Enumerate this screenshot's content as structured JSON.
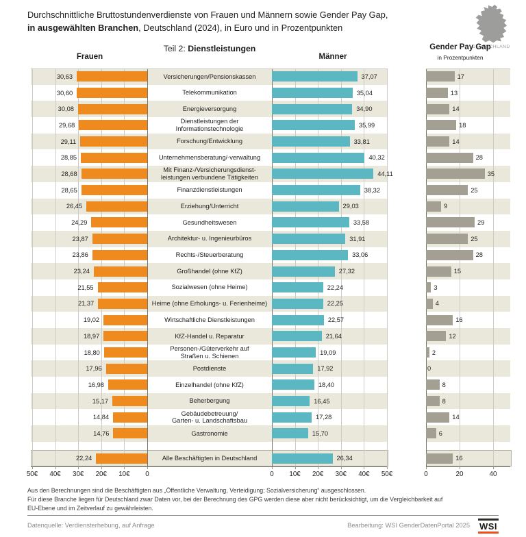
{
  "title": {
    "line1": "Durchschnittliche Bruttostundenverdienste von Frauen und Männern sowie Gender Pay Gap,",
    "line2_bold": "in ausgewählten Branchen",
    "line2_rest": ", Deutschland (2024), in Euro und in Prozentpunkten"
  },
  "map_label": "DEUTSCHLAND",
  "subtitle": {
    "prefix": "Teil 2: ",
    "bold": "Dienstleistungen"
  },
  "columns": {
    "women": "Frauen",
    "men": "Männer",
    "gpg": "Gender Pay Gap",
    "gpg_sub": "in Prozentpunkten"
  },
  "axes": {
    "women_ticks": [
      "50€",
      "40€",
      "30€",
      "20€",
      "10€",
      "0"
    ],
    "men_ticks": [
      "0",
      "10€",
      "20€",
      "30€",
      "40€",
      "50€"
    ],
    "gpg_ticks": [
      "0",
      "20",
      "40"
    ]
  },
  "rows": [
    {
      "label": "Versicherungen/Pensionskassen",
      "women": "30,63",
      "men": "37,07",
      "gpg": "17"
    },
    {
      "label": "Telekommunikation",
      "women": "30,60",
      "men": "35,04",
      "gpg": "13"
    },
    {
      "label": "Energieversorgung",
      "women": "30,08",
      "men": "34,90",
      "gpg": "14"
    },
    {
      "label": "Dienstleistungen der\nInformationstechnologie",
      "women": "29,68",
      "men": "35,99",
      "gpg": "18"
    },
    {
      "label": "Forschung/Entwicklung",
      "women": "29,11",
      "men": "33,81",
      "gpg": "14"
    },
    {
      "label": "Unternehmensberatung/-verwaltung",
      "women": "28,85",
      "men": "40,32",
      "gpg": "28"
    },
    {
      "label": "Mit Finanz-/Versicherungsdienst-\nleistungen verbundene Tätigkeiten",
      "women": "28,68",
      "men": "44,11",
      "gpg": "35"
    },
    {
      "label": "Finanzdienstleistungen",
      "women": "28,65",
      "men": "38,32",
      "gpg": "25"
    },
    {
      "label": "Erziehung/Unterricht",
      "women": "26,45",
      "men": "29,03",
      "gpg": "9"
    },
    {
      "label": "Gesundheitswesen",
      "women": "24,29",
      "men": "33,58",
      "gpg": "29"
    },
    {
      "label": "Architektur- u. Ingenieurbüros",
      "women": "23,87",
      "men": "31,91",
      "gpg": "25"
    },
    {
      "label": "Rechts-/Steuerberatung",
      "women": "23,86",
      "men": "33,06",
      "gpg": "28"
    },
    {
      "label": "Großhandel (ohne KfZ)",
      "women": "23,24",
      "men": "27,32",
      "gpg": "15"
    },
    {
      "label": "Sozialwesen (ohne Heime)",
      "women": "21,55",
      "men": "22,24",
      "gpg": "3"
    },
    {
      "label": "Heime (ohne Erholungs- u. Ferienheime)",
      "women": "21,37",
      "men": "22,25",
      "gpg": "4"
    },
    {
      "label": "Wirtschaftliche Dienstleistungen",
      "women": "19,02",
      "men": "22,57",
      "gpg": "16"
    },
    {
      "label": "KfZ-Handel u. Reparatur",
      "women": "18,97",
      "men": "21,64",
      "gpg": "12"
    },
    {
      "label": "Personen-/Güterverkehr auf\nStraßen u. Schienen",
      "women": "18,80",
      "men": "19,09",
      "gpg": "2"
    },
    {
      "label": "Postdienste",
      "women": "17,96",
      "men": "17,92",
      "gpg": "0"
    },
    {
      "label": "Einzelhandel (ohne KfZ)",
      "women": "16,98",
      "men": "18,40",
      "gpg": "8"
    },
    {
      "label": "Beherbergung",
      "women": "15,17",
      "men": "16,45",
      "gpg": "8"
    },
    {
      "label": "Gebäudebetreuung/\nGarten- u. Landschaftsbau",
      "women": "14,84",
      "men": "17,28",
      "gpg": "14"
    },
    {
      "label": "Gastronomie",
      "women": "14,76",
      "men": "15,70",
      "gpg": "6"
    },
    {
      "label": "Alle Beschäftigten in Deutschland",
      "women": "22,24",
      "men": "26,34",
      "gpg": "16"
    }
  ],
  "footnotes": {
    "line1": "Aus den Berechnungen sind die Beschäftigten aus „Öffentliche Verwaltung, Verteidigung; Sozialversicherung“ ausgeschlossen.",
    "line2": "Für diese Branche liegen für Deutschland zwar Daten vor, bei der Berechnung des GPG werden diese aber nicht berücksichtigt, um die Vergleichbarkeit auf",
    "line3": "EU-Ebene und im Zeitverlauf zu gewährleisten."
  },
  "footer": {
    "source": "Datenquelle: Verdiensterhebung, auf Anfrage",
    "credit": "Bearbeitung: WSI GenderDatenPortal 2025",
    "logo": "WSI"
  },
  "colors": {
    "women_bar": "#ef8a1e",
    "men_bar": "#5bb7c2",
    "gpg_bar": "#a3a093",
    "row_stripe": "#eae7db",
    "map_gray": "#9d9d9c",
    "logo_underline": "#e84d19"
  },
  "chart_data": {
    "type": "bar",
    "orientation": "horizontal",
    "title": "Durchschnittliche Bruttostundenverdienste von Frauen und Männern sowie Gender Pay Gap, in ausgewählten Branchen, Deutschland (2024), in Euro und in Prozentpunkten",
    "subtitle": "Teil 2: Dienstleistungen",
    "categories": [
      "Versicherungen/Pensionskassen",
      "Telekommunikation",
      "Energieversorgung",
      "Dienstleistungen der Informationstechnologie",
      "Forschung/Entwicklung",
      "Unternehmensberatung/-verwaltung",
      "Mit Finanz-/Versicherungsdienstleistungen verbundene Tätigkeiten",
      "Finanzdienstleistungen",
      "Erziehung/Unterricht",
      "Gesundheitswesen",
      "Architektur- u. Ingenieurbüros",
      "Rechts-/Steuerberatung",
      "Großhandel (ohne KfZ)",
      "Sozialwesen (ohne Heime)",
      "Heime (ohne Erholungs- u. Ferienheime)",
      "Wirtschaftliche Dienstleistungen",
      "KfZ-Handel u. Reparatur",
      "Personen-/Güterverkehr auf Straßen u. Schienen",
      "Postdienste",
      "Einzelhandel (ohne KfZ)",
      "Beherbergung",
      "Gebäudebetreuung/Garten- u. Landschaftsbau",
      "Gastronomie",
      "Alle Beschäftigten in Deutschland"
    ],
    "series": [
      {
        "name": "Frauen",
        "unit": "Euro",
        "color": "#ef8a1e",
        "values": [
          30.63,
          30.6,
          30.08,
          29.68,
          29.11,
          28.85,
          28.68,
          28.65,
          26.45,
          24.29,
          23.87,
          23.86,
          23.24,
          21.55,
          21.37,
          19.02,
          18.97,
          18.8,
          17.96,
          16.98,
          15.17,
          14.84,
          14.76,
          22.24
        ]
      },
      {
        "name": "Männer",
        "unit": "Euro",
        "color": "#5bb7c2",
        "values": [
          37.07,
          35.04,
          34.9,
          35.99,
          33.81,
          40.32,
          44.11,
          38.32,
          29.03,
          33.58,
          31.91,
          33.06,
          27.32,
          22.24,
          22.25,
          22.57,
          21.64,
          19.09,
          17.92,
          18.4,
          16.45,
          17.28,
          15.7,
          26.34
        ]
      },
      {
        "name": "Gender Pay Gap",
        "unit": "Prozentpunkte",
        "color": "#a3a093",
        "values": [
          17,
          13,
          14,
          18,
          14,
          28,
          35,
          25,
          9,
          29,
          25,
          28,
          15,
          3,
          4,
          16,
          12,
          2,
          0,
          8,
          8,
          14,
          6,
          16
        ]
      }
    ],
    "euro_axis": {
      "range": [
        0,
        50
      ],
      "ticks": [
        0,
        10,
        20,
        30,
        40,
        50
      ]
    },
    "gpg_axis": {
      "range": [
        0,
        40
      ],
      "ticks": [
        0,
        20,
        40
      ]
    },
    "grid": true,
    "legend_position": "column-headers"
  }
}
